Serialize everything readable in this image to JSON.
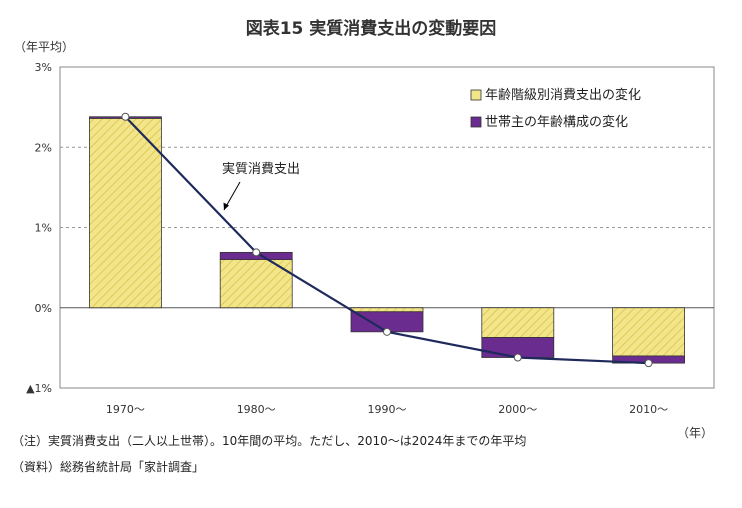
{
  "chart_data": {
    "type": "bar",
    "title": "図表15 実質消費支出の変動要因",
    "y_unit": "（年平均）",
    "x_unit": "（年）",
    "categories": [
      "1970～",
      "1980～",
      "1990～",
      "2000～",
      "2010～"
    ],
    "ylim": [
      -1,
      3
    ],
    "y_ticks": [
      {
        "value": 3,
        "label": "3%"
      },
      {
        "value": 2,
        "label": "2%"
      },
      {
        "value": 1,
        "label": "1%"
      },
      {
        "value": 0,
        "label": "0%"
      },
      {
        "value": -1,
        "label": "▲1%"
      }
    ],
    "stacked": true,
    "series": [
      {
        "name": "年齢階級別消費支出の変化",
        "type": "bar",
        "color": "#f3e58a",
        "values": [
          2.36,
          0.6,
          -0.05,
          -0.37,
          -0.6
        ]
      },
      {
        "name": "世帯主の年齢構成の変化",
        "type": "bar",
        "color": "#6b2c8f",
        "values": [
          0.02,
          0.09,
          -0.25,
          -0.25,
          -0.09
        ]
      },
      {
        "name": "実質消費支出",
        "type": "line",
        "color": "#1f2a5c",
        "values": [
          2.38,
          0.69,
          -0.3,
          -0.62,
          -0.69
        ]
      }
    ],
    "annotation": "実質消費支出",
    "legend_position": "top-right",
    "grid": true
  },
  "notes": {
    "note": "（注）実質消費支出（二人以上世帯）。10年間の平均。ただし、2010～は2024年までの年平均",
    "source": "（資料）総務省統計局「家計調査」"
  }
}
